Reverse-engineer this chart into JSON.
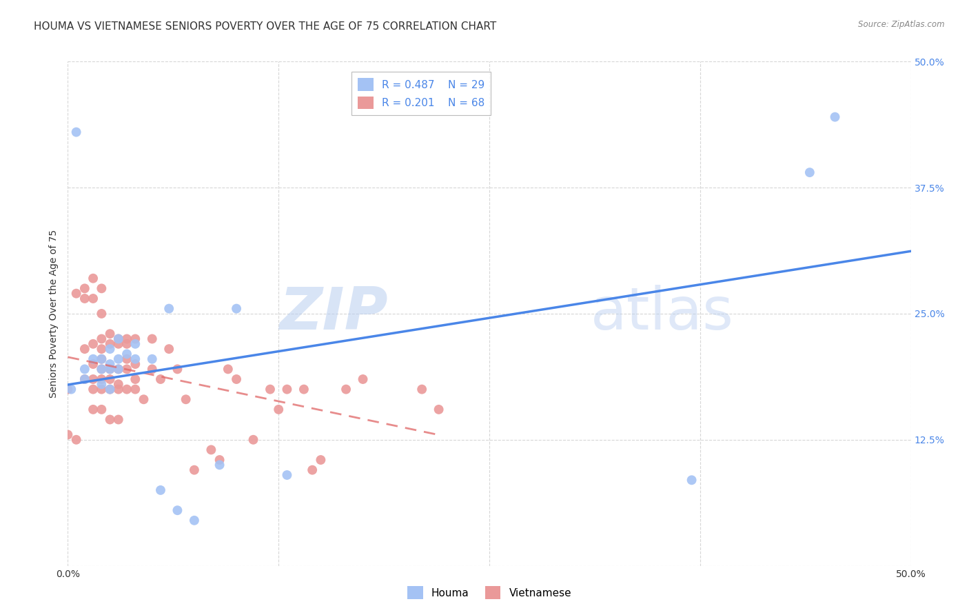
{
  "title": "HOUMA VS VIETNAMESE SENIORS POVERTY OVER THE AGE OF 75 CORRELATION CHART",
  "source": "Source: ZipAtlas.com",
  "ylabel": "Seniors Poverty Over the Age of 75",
  "xlim": [
    0.0,
    0.5
  ],
  "ylim": [
    0.0,
    0.5
  ],
  "houma_R": 0.487,
  "houma_N": 29,
  "vietnamese_R": 0.201,
  "vietnamese_N": 68,
  "houma_color": "#a4c2f4",
  "vietnamese_color": "#ea9999",
  "houma_line_color": "#4a86e8",
  "vietnamese_line_color": "#e06666",
  "watermark_zip": "ZIP",
  "watermark_atlas": "atlas",
  "background_color": "#ffffff",
  "grid_color": "#cccccc",
  "title_fontsize": 11,
  "axis_label_fontsize": 10,
  "tick_fontsize": 10,
  "legend_fontsize": 11,
  "houma_x": [
    0.002,
    0.005,
    0.01,
    0.01,
    0.015,
    0.02,
    0.02,
    0.02,
    0.025,
    0.025,
    0.025,
    0.025,
    0.03,
    0.03,
    0.03,
    0.035,
    0.04,
    0.04,
    0.05,
    0.055,
    0.06,
    0.065,
    0.075,
    0.09,
    0.1,
    0.13,
    0.37,
    0.44,
    0.455
  ],
  "houma_y": [
    0.175,
    0.43,
    0.195,
    0.185,
    0.205,
    0.205,
    0.195,
    0.18,
    0.215,
    0.2,
    0.195,
    0.175,
    0.225,
    0.205,
    0.195,
    0.21,
    0.22,
    0.205,
    0.205,
    0.075,
    0.255,
    0.055,
    0.045,
    0.1,
    0.255,
    0.09,
    0.085,
    0.39,
    0.445
  ],
  "vietnamese_x": [
    0.0,
    0.0,
    0.005,
    0.005,
    0.01,
    0.01,
    0.01,
    0.01,
    0.015,
    0.015,
    0.015,
    0.015,
    0.015,
    0.015,
    0.015,
    0.02,
    0.02,
    0.02,
    0.02,
    0.02,
    0.02,
    0.02,
    0.02,
    0.02,
    0.025,
    0.025,
    0.025,
    0.025,
    0.025,
    0.025,
    0.03,
    0.03,
    0.03,
    0.03,
    0.03,
    0.03,
    0.035,
    0.035,
    0.035,
    0.035,
    0.035,
    0.04,
    0.04,
    0.04,
    0.04,
    0.045,
    0.05,
    0.05,
    0.055,
    0.06,
    0.065,
    0.07,
    0.075,
    0.085,
    0.09,
    0.095,
    0.1,
    0.11,
    0.12,
    0.125,
    0.13,
    0.14,
    0.145,
    0.15,
    0.165,
    0.175,
    0.21,
    0.22
  ],
  "vietnamese_y": [
    0.175,
    0.13,
    0.27,
    0.125,
    0.275,
    0.265,
    0.215,
    0.185,
    0.285,
    0.265,
    0.22,
    0.2,
    0.185,
    0.175,
    0.155,
    0.275,
    0.25,
    0.225,
    0.215,
    0.205,
    0.195,
    0.185,
    0.175,
    0.155,
    0.23,
    0.22,
    0.195,
    0.185,
    0.175,
    0.145,
    0.225,
    0.22,
    0.195,
    0.18,
    0.175,
    0.145,
    0.225,
    0.22,
    0.205,
    0.195,
    0.175,
    0.225,
    0.2,
    0.185,
    0.175,
    0.165,
    0.225,
    0.195,
    0.185,
    0.215,
    0.195,
    0.165,
    0.095,
    0.115,
    0.105,
    0.195,
    0.185,
    0.125,
    0.175,
    0.155,
    0.175,
    0.175,
    0.095,
    0.105,
    0.175,
    0.185,
    0.175,
    0.155
  ]
}
